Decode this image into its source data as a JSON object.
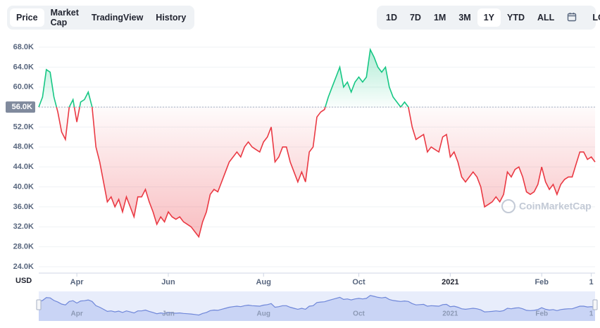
{
  "tabs": [
    "Price",
    "Market Cap",
    "TradingView",
    "History"
  ],
  "active_tab": 0,
  "ranges": [
    "1D",
    "7D",
    "1M",
    "3M",
    "1Y",
    "YTD",
    "ALL"
  ],
  "active_range": 4,
  "log_button": "LOG",
  "currency": "USD",
  "watermark": "CoinMarketCap",
  "chart_data": {
    "type": "line",
    "baseline": 56,
    "up_color": "#16c784",
    "down_color": "#ea3943",
    "ylim": [
      24,
      70
    ],
    "yticks": [
      {
        "value": 24,
        "label": "24.0K"
      },
      {
        "value": 28,
        "label": "28.0K"
      },
      {
        "value": 32,
        "label": "32.0K"
      },
      {
        "value": 36,
        "label": "36.0K"
      },
      {
        "value": 40,
        "label": "40.0K"
      },
      {
        "value": 44,
        "label": "44.0K"
      },
      {
        "value": 48,
        "label": "48.0K"
      },
      {
        "value": 52,
        "label": "52.0K"
      },
      {
        "value": 56,
        "label": "56.0K"
      },
      {
        "value": 60,
        "label": "60.0K"
      },
      {
        "value": 64,
        "label": "64.0K"
      },
      {
        "value": 68,
        "label": "68.0K"
      }
    ],
    "xticks": [
      {
        "value": 10,
        "label": "Apr"
      },
      {
        "value": 34,
        "label": "Jun"
      },
      {
        "value": 59,
        "label": "Aug"
      },
      {
        "value": 84,
        "label": "Oct"
      },
      {
        "value": 108,
        "label": "2021"
      },
      {
        "value": 132,
        "label": "Feb"
      },
      {
        "value": 145,
        "label": "1"
      }
    ],
    "values": [
      56,
      58,
      63.5,
      63,
      58,
      55,
      51,
      49.5,
      56,
      57.5,
      53,
      57,
      57.5,
      59,
      56,
      48,
      45,
      41,
      37,
      38,
      36,
      37.5,
      35,
      38,
      36,
      34,
      38,
      38,
      39.5,
      37,
      35,
      32.5,
      34,
      33,
      35,
      34,
      33.5,
      34,
      33,
      32.5,
      32,
      31,
      30,
      33,
      35,
      38.5,
      39.5,
      39,
      41,
      43,
      45,
      46,
      47,
      46,
      48,
      49,
      48,
      47.5,
      47,
      49,
      50,
      52,
      45,
      46,
      48,
      48,
      45,
      43,
      41,
      43,
      41,
      47,
      48,
      54,
      55,
      55.5,
      58,
      60,
      62,
      64,
      60,
      61,
      59,
      61,
      62,
      61,
      62,
      67.5,
      66,
      64,
      63,
      64,
      60,
      58,
      57,
      56,
      57,
      56,
      52,
      49.5,
      50,
      50.5,
      47,
      48,
      47.5,
      47,
      50,
      50.5,
      46,
      47,
      45,
      42,
      41,
      42,
      43,
      42,
      40,
      36,
      36.5,
      37,
      38,
      37,
      38.5,
      43,
      42,
      43.5,
      44,
      42,
      39,
      38.5,
      39,
      40.5,
      44,
      41,
      39.5,
      40.5,
      38.5,
      40.5,
      41.5,
      42,
      42,
      44.5,
      47,
      47,
      45.5,
      46,
      45
    ]
  }
}
